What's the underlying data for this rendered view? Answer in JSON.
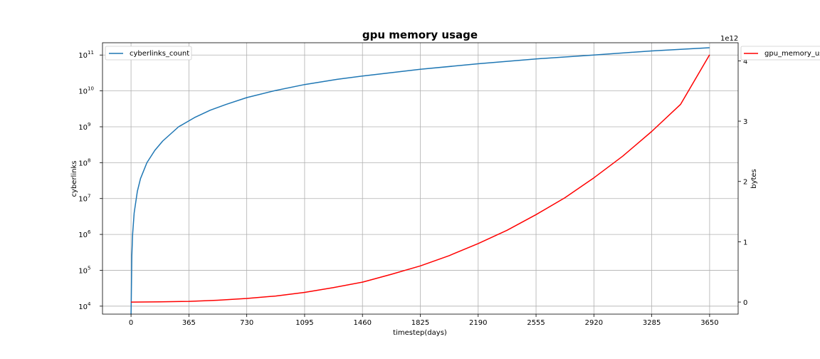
{
  "chart_data": {
    "type": "line",
    "title": "gpu memory usage",
    "xlabel": "timestep(days)",
    "ylabel_left": "cyberlinks",
    "ylabel_right": "bytes",
    "right_axis_offset_text": "1e12",
    "x_ticks": [
      0,
      365,
      730,
      1095,
      1460,
      1825,
      2190,
      2555,
      2920,
      3285,
      3650
    ],
    "xlim": [
      -180,
      3830
    ],
    "left_axis": {
      "scale": "log",
      "ylim": [
        6000,
        220000000000.0
      ],
      "ticks": [
        {
          "value": 10000.0,
          "base": "10",
          "exp": "4"
        },
        {
          "value": 100000.0,
          "base": "10",
          "exp": "5"
        },
        {
          "value": 1000000.0,
          "base": "10",
          "exp": "6"
        },
        {
          "value": 10000000.0,
          "base": "10",
          "exp": "7"
        },
        {
          "value": 100000000.0,
          "base": "10",
          "exp": "8"
        },
        {
          "value": 1000000000.0,
          "base": "10",
          "exp": "9"
        },
        {
          "value": 10000000000.0,
          "base": "10",
          "exp": "10"
        },
        {
          "value": 100000000000.0,
          "base": "10",
          "exp": "11"
        }
      ]
    },
    "right_axis": {
      "scale": "linear",
      "ylim": [
        -0.2,
        4.3
      ],
      "ticks": [
        0,
        1,
        2,
        3,
        4
      ]
    },
    "grid": true,
    "series": [
      {
        "name": "cyberlinks_count",
        "axis": "left",
        "color": "#1f77b4",
        "x": [
          0,
          1,
          5,
          10,
          20,
          40,
          60,
          100,
          150,
          200,
          300,
          400,
          500,
          600,
          730,
          900,
          1095,
          1300,
          1460,
          1825,
          2190,
          2555,
          2920,
          3285,
          3650
        ],
        "y": [
          6000,
          10000.0,
          250000.0,
          1000000.0,
          4000000.0,
          16000000.0,
          36000000.0,
          100000000.0,
          220000000.0,
          400000000.0,
          1000000000.0,
          1800000000.0,
          2900000000.0,
          4200000000.0,
          6500000000.0,
          10000000000.0,
          15000000000.0,
          21000000000.0,
          26000000000.0,
          40000000000.0,
          57000000000.0,
          78000000000.0,
          100000000000.0,
          130000000000.0,
          160000000000.0
        ]
      },
      {
        "name": "gpu_memory_usage",
        "axis": "right",
        "color": "#ff0000",
        "x": [
          0,
          182,
          365,
          547,
          730,
          912,
          1095,
          1277,
          1460,
          1642,
          1825,
          2007,
          2190,
          2372,
          2555,
          2737,
          2920,
          3102,
          3285,
          3467,
          3650
        ],
        "y": [
          0,
          0.003,
          0.012,
          0.03,
          0.06,
          0.1,
          0.16,
          0.24,
          0.33,
          0.46,
          0.6,
          0.77,
          0.97,
          1.19,
          1.45,
          1.73,
          2.06,
          2.42,
          2.83,
          3.28,
          4.1
        ]
      }
    ],
    "legends": [
      {
        "entries": [
          "cyberlinks_count"
        ],
        "placement": "upper-left"
      },
      {
        "entries": [
          "gpu_memory_usage"
        ],
        "placement": "outside-right"
      }
    ]
  }
}
